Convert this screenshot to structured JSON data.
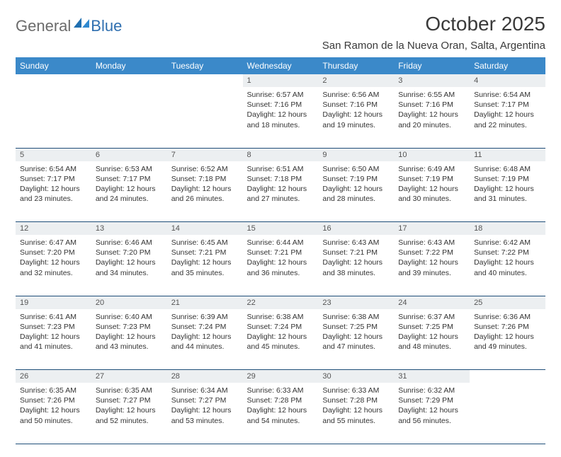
{
  "logo": {
    "general": "General",
    "blue": "Blue"
  },
  "title": "October 2025",
  "location": "San Ramon de la Nueva Oran, Salta, Argentina",
  "colors": {
    "header_bg": "#3b89c9",
    "header_text": "#ffffff",
    "daynum_bg": "#eceff1",
    "rule": "#1f4e79",
    "logo_gray": "#6b6b6b",
    "logo_blue": "#2f6fb0"
  },
  "day_headers": [
    "Sunday",
    "Monday",
    "Tuesday",
    "Wednesday",
    "Thursday",
    "Friday",
    "Saturday"
  ],
  "weeks": [
    {
      "nums": [
        "",
        "",
        "",
        "1",
        "2",
        "3",
        "4"
      ],
      "cells": [
        null,
        null,
        null,
        {
          "sunrise": "Sunrise: 6:57 AM",
          "sunset": "Sunset: 7:16 PM",
          "dl1": "Daylight: 12 hours",
          "dl2": "and 18 minutes."
        },
        {
          "sunrise": "Sunrise: 6:56 AM",
          "sunset": "Sunset: 7:16 PM",
          "dl1": "Daylight: 12 hours",
          "dl2": "and 19 minutes."
        },
        {
          "sunrise": "Sunrise: 6:55 AM",
          "sunset": "Sunset: 7:16 PM",
          "dl1": "Daylight: 12 hours",
          "dl2": "and 20 minutes."
        },
        {
          "sunrise": "Sunrise: 6:54 AM",
          "sunset": "Sunset: 7:17 PM",
          "dl1": "Daylight: 12 hours",
          "dl2": "and 22 minutes."
        }
      ]
    },
    {
      "nums": [
        "5",
        "6",
        "7",
        "8",
        "9",
        "10",
        "11"
      ],
      "cells": [
        {
          "sunrise": "Sunrise: 6:54 AM",
          "sunset": "Sunset: 7:17 PM",
          "dl1": "Daylight: 12 hours",
          "dl2": "and 23 minutes."
        },
        {
          "sunrise": "Sunrise: 6:53 AM",
          "sunset": "Sunset: 7:17 PM",
          "dl1": "Daylight: 12 hours",
          "dl2": "and 24 minutes."
        },
        {
          "sunrise": "Sunrise: 6:52 AM",
          "sunset": "Sunset: 7:18 PM",
          "dl1": "Daylight: 12 hours",
          "dl2": "and 26 minutes."
        },
        {
          "sunrise": "Sunrise: 6:51 AM",
          "sunset": "Sunset: 7:18 PM",
          "dl1": "Daylight: 12 hours",
          "dl2": "and 27 minutes."
        },
        {
          "sunrise": "Sunrise: 6:50 AM",
          "sunset": "Sunset: 7:19 PM",
          "dl1": "Daylight: 12 hours",
          "dl2": "and 28 minutes."
        },
        {
          "sunrise": "Sunrise: 6:49 AM",
          "sunset": "Sunset: 7:19 PM",
          "dl1": "Daylight: 12 hours",
          "dl2": "and 30 minutes."
        },
        {
          "sunrise": "Sunrise: 6:48 AM",
          "sunset": "Sunset: 7:19 PM",
          "dl1": "Daylight: 12 hours",
          "dl2": "and 31 minutes."
        }
      ]
    },
    {
      "nums": [
        "12",
        "13",
        "14",
        "15",
        "16",
        "17",
        "18"
      ],
      "cells": [
        {
          "sunrise": "Sunrise: 6:47 AM",
          "sunset": "Sunset: 7:20 PM",
          "dl1": "Daylight: 12 hours",
          "dl2": "and 32 minutes."
        },
        {
          "sunrise": "Sunrise: 6:46 AM",
          "sunset": "Sunset: 7:20 PM",
          "dl1": "Daylight: 12 hours",
          "dl2": "and 34 minutes."
        },
        {
          "sunrise": "Sunrise: 6:45 AM",
          "sunset": "Sunset: 7:21 PM",
          "dl1": "Daylight: 12 hours",
          "dl2": "and 35 minutes."
        },
        {
          "sunrise": "Sunrise: 6:44 AM",
          "sunset": "Sunset: 7:21 PM",
          "dl1": "Daylight: 12 hours",
          "dl2": "and 36 minutes."
        },
        {
          "sunrise": "Sunrise: 6:43 AM",
          "sunset": "Sunset: 7:21 PM",
          "dl1": "Daylight: 12 hours",
          "dl2": "and 38 minutes."
        },
        {
          "sunrise": "Sunrise: 6:43 AM",
          "sunset": "Sunset: 7:22 PM",
          "dl1": "Daylight: 12 hours",
          "dl2": "and 39 minutes."
        },
        {
          "sunrise": "Sunrise: 6:42 AM",
          "sunset": "Sunset: 7:22 PM",
          "dl1": "Daylight: 12 hours",
          "dl2": "and 40 minutes."
        }
      ]
    },
    {
      "nums": [
        "19",
        "20",
        "21",
        "22",
        "23",
        "24",
        "25"
      ],
      "cells": [
        {
          "sunrise": "Sunrise: 6:41 AM",
          "sunset": "Sunset: 7:23 PM",
          "dl1": "Daylight: 12 hours",
          "dl2": "and 41 minutes."
        },
        {
          "sunrise": "Sunrise: 6:40 AM",
          "sunset": "Sunset: 7:23 PM",
          "dl1": "Daylight: 12 hours",
          "dl2": "and 43 minutes."
        },
        {
          "sunrise": "Sunrise: 6:39 AM",
          "sunset": "Sunset: 7:24 PM",
          "dl1": "Daylight: 12 hours",
          "dl2": "and 44 minutes."
        },
        {
          "sunrise": "Sunrise: 6:38 AM",
          "sunset": "Sunset: 7:24 PM",
          "dl1": "Daylight: 12 hours",
          "dl2": "and 45 minutes."
        },
        {
          "sunrise": "Sunrise: 6:38 AM",
          "sunset": "Sunset: 7:25 PM",
          "dl1": "Daylight: 12 hours",
          "dl2": "and 47 minutes."
        },
        {
          "sunrise": "Sunrise: 6:37 AM",
          "sunset": "Sunset: 7:25 PM",
          "dl1": "Daylight: 12 hours",
          "dl2": "and 48 minutes."
        },
        {
          "sunrise": "Sunrise: 6:36 AM",
          "sunset": "Sunset: 7:26 PM",
          "dl1": "Daylight: 12 hours",
          "dl2": "and 49 minutes."
        }
      ]
    },
    {
      "nums": [
        "26",
        "27",
        "28",
        "29",
        "30",
        "31",
        ""
      ],
      "cells": [
        {
          "sunrise": "Sunrise: 6:35 AM",
          "sunset": "Sunset: 7:26 PM",
          "dl1": "Daylight: 12 hours",
          "dl2": "and 50 minutes."
        },
        {
          "sunrise": "Sunrise: 6:35 AM",
          "sunset": "Sunset: 7:27 PM",
          "dl1": "Daylight: 12 hours",
          "dl2": "and 52 minutes."
        },
        {
          "sunrise": "Sunrise: 6:34 AM",
          "sunset": "Sunset: 7:27 PM",
          "dl1": "Daylight: 12 hours",
          "dl2": "and 53 minutes."
        },
        {
          "sunrise": "Sunrise: 6:33 AM",
          "sunset": "Sunset: 7:28 PM",
          "dl1": "Daylight: 12 hours",
          "dl2": "and 54 minutes."
        },
        {
          "sunrise": "Sunrise: 6:33 AM",
          "sunset": "Sunset: 7:28 PM",
          "dl1": "Daylight: 12 hours",
          "dl2": "and 55 minutes."
        },
        {
          "sunrise": "Sunrise: 6:32 AM",
          "sunset": "Sunset: 7:29 PM",
          "dl1": "Daylight: 12 hours",
          "dl2": "and 56 minutes."
        },
        null
      ]
    }
  ]
}
